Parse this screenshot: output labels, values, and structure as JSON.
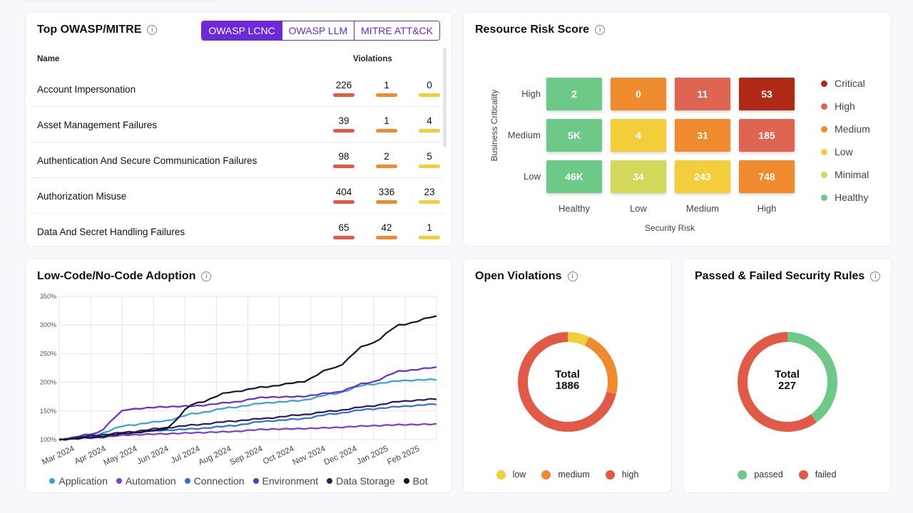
{
  "owasp": {
    "title": "Top OWASP/MITRE",
    "tabs": [
      "OWASP LCNC",
      "OWASP LLM",
      "MITRE ATT&CK"
    ],
    "columns": {
      "name": "Name",
      "violations": "Violations"
    },
    "rows": [
      {
        "name": "Account Impersonation",
        "high": "226",
        "medium": "1",
        "low": "0"
      },
      {
        "name": "Asset Management Failures",
        "high": "39",
        "medium": "1",
        "low": "4"
      },
      {
        "name": "Authentication And Secure Communication Failures",
        "high": "98",
        "medium": "2",
        "low": "5"
      },
      {
        "name": "Authorization Misuse",
        "high": "404",
        "medium": "336",
        "low": "23"
      },
      {
        "name": "Data And Secret Handling Failures",
        "high": "65",
        "medium": "42",
        "low": "1"
      }
    ],
    "colors": {
      "high": "#e05a47",
      "medium": "#ef8a2e",
      "low": "#f2cf3a"
    }
  },
  "risk": {
    "title": "Resource Risk Score",
    "y_axis_title": "Business Criticality",
    "x_axis_title": "Security Risk",
    "y_labels": [
      "High",
      "Medium",
      "Low"
    ],
    "x_labels": [
      "Healthy",
      "Low",
      "Medium",
      "High"
    ],
    "grid": [
      [
        {
          "v": "2",
          "c": "#6cc987"
        },
        {
          "v": "0",
          "c": "#ef8a2e"
        },
        {
          "v": "11",
          "c": "#e06452"
        },
        {
          "v": "53",
          "c": "#b02a16"
        }
      ],
      [
        {
          "v": "5K",
          "c": "#6cc987"
        },
        {
          "v": "4",
          "c": "#f2cf3a"
        },
        {
          "v": "31",
          "c": "#ef8a2e"
        },
        {
          "v": "185",
          "c": "#e06452"
        }
      ],
      [
        {
          "v": "46K",
          "c": "#6cc987"
        },
        {
          "v": "34",
          "c": "#d4d85a"
        },
        {
          "v": "243",
          "c": "#f2cf3a"
        },
        {
          "v": "748",
          "c": "#ef8a2e"
        }
      ]
    ],
    "legend": [
      {
        "label": "Critical",
        "color": "#b02a16"
      },
      {
        "label": "High",
        "color": "#e06452"
      },
      {
        "label": "Medium",
        "color": "#ef8a2e"
      },
      {
        "label": "Low",
        "color": "#f2cf3a"
      },
      {
        "label": "Minimal",
        "color": "#d4d85a"
      },
      {
        "label": "Healthy",
        "color": "#6cc987"
      }
    ]
  },
  "adoption": {
    "title": "Low-Code/No-Code Adoption"
  },
  "open_violations": {
    "title": "Open Violations",
    "total_label": "Total",
    "total_value": "1886"
  },
  "rules": {
    "title": "Passed & Failed Security Rules",
    "total_label": "Total",
    "total_value": "227"
  },
  "chart_data": [
    {
      "type": "line",
      "title": "Low-Code/No-Code Adoption",
      "x": [
        "Mar 2024",
        "Apr 2024",
        "May 2024",
        "Jun 2024",
        "Jul 2024",
        "Aug 2024",
        "Sep 2024",
        "Oct 2024",
        "Nov 2024",
        "Dec 2024",
        "Jan 2025",
        "Feb 2025"
      ],
      "y_ticks": [
        "100%",
        "150%",
        "200%",
        "250%",
        "300%",
        "350%"
      ],
      "ylim": [
        100,
        350
      ],
      "series": [
        {
          "name": "Application",
          "color": "#3aa0d8",
          "values": [
            100,
            108,
            125,
            132,
            146,
            156,
            164,
            168,
            180,
            196,
            203,
            205
          ]
        },
        {
          "name": "Automation",
          "color": "#7a3fd1",
          "values": [
            100,
            103,
            108,
            110,
            112,
            114,
            118,
            119,
            121,
            124,
            126,
            127
          ]
        },
        {
          "name": "Connection",
          "color": "#2f6fe0",
          "values": [
            100,
            106,
            113,
            116,
            119,
            124,
            132,
            136,
            145,
            153,
            158,
            162
          ]
        },
        {
          "name": "Environment",
          "color": "#6a2ec9",
          "values": [
            100,
            110,
            153,
            157,
            159,
            165,
            174,
            175,
            182,
            199,
            220,
            226
          ]
        },
        {
          "name": "Data Storage",
          "color": "#2b1d5e",
          "values": [
            100,
            107,
            113,
            120,
            126,
            132,
            137,
            143,
            150,
            158,
            167,
            171
          ]
        },
        {
          "name": "Bot",
          "color": "#141433",
          "values": [
            100,
            104,
            111,
            117,
            164,
            183,
            192,
            200,
            225,
            266,
            301,
            315
          ]
        }
      ]
    },
    {
      "type": "pie",
      "title": "Open Violations",
      "categories": [
        "low",
        "medium",
        "high"
      ],
      "values": [
        7,
        22,
        71
      ],
      "colors": [
        "#f2cf3a",
        "#ef8a2e",
        "#e05a47"
      ]
    },
    {
      "type": "pie",
      "title": "Passed & Failed Security Rules",
      "categories": [
        "passed",
        "failed"
      ],
      "values": [
        40,
        60
      ],
      "colors": [
        "#6cc987",
        "#e05a47"
      ]
    }
  ]
}
